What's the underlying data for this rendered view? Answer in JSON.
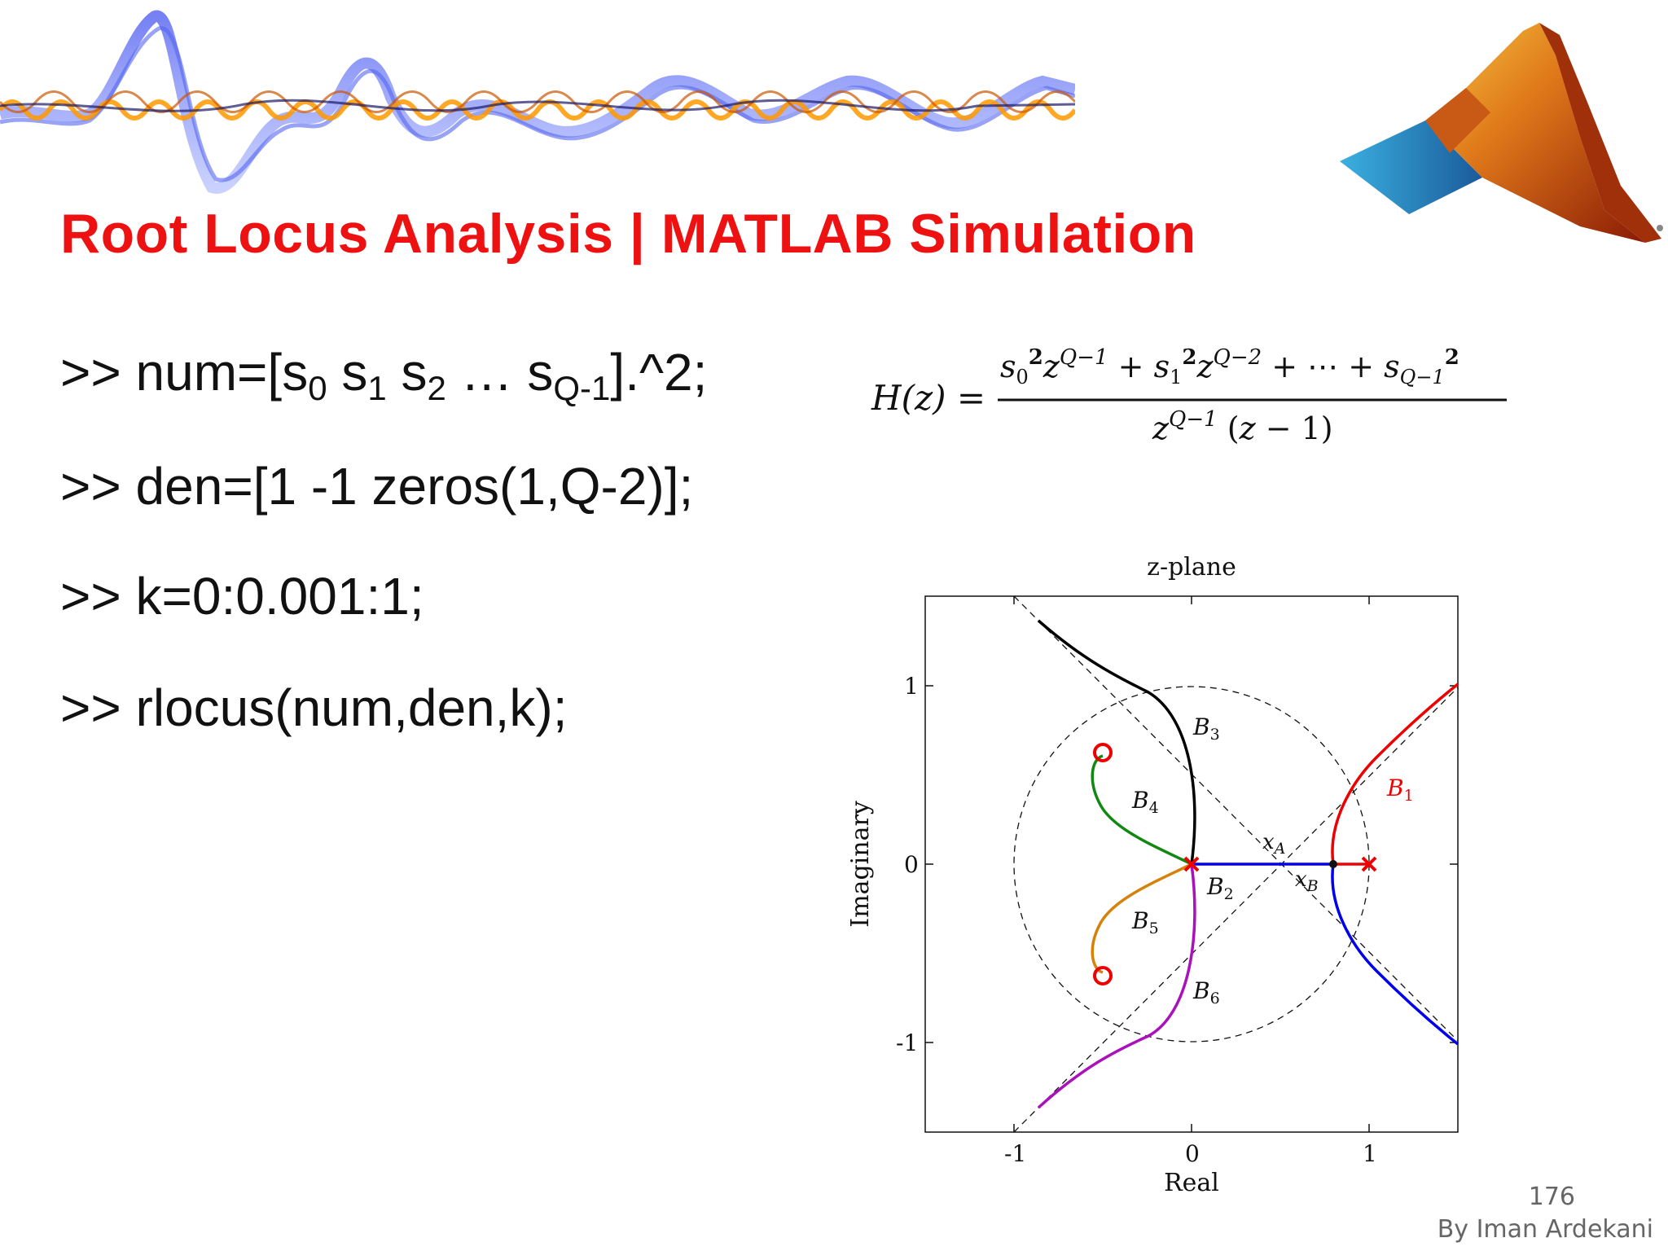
{
  "title": "Root Locus Analysis | MATLAB Simulation",
  "commands": {
    "line1": {
      "prefix": ">> num=[s",
      "s0_sub": "0",
      "s1_base": " s",
      "s1_sub": "1",
      "s2_base": " s",
      "s2_sub": "2",
      "dots": " … s",
      "sq_sub": "Q-1",
      "suffix": "].^2;"
    },
    "line2": ">> den=[1 -1 zeros(1,Q-2)];",
    "line3": ">> k=0:0.001:1;",
    "line4": ">> rlocus(num,den,k);"
  },
  "equation": {
    "lhs": "H(z) =",
    "numerator": "s₀²z^(Q−1) + s₁²z^(Q−2) + ⋯ + s_(Q−1)²",
    "denominator": "z^(Q−1) (z − 1)"
  },
  "diagram": {
    "title": "z-plane",
    "xlabel": "Real",
    "ylabel": "Imaginary",
    "x_ticks": [
      "-1",
      "0",
      "1"
    ],
    "y_ticks": [
      "1",
      "0",
      "-1"
    ],
    "xlim": [
      -1.5,
      1.5
    ],
    "ylim": [
      -1.5,
      1.5
    ],
    "unit_circle": true,
    "branch_labels": {
      "B1": "B",
      "B1_sub": "1",
      "B2": "B",
      "B2_sub": "2",
      "B3": "B",
      "B3_sub": "3",
      "B4": "B",
      "B4_sub": "4",
      "B5": "B",
      "B5_sub": "5",
      "B6": "B",
      "B6_sub": "6"
    },
    "point_labels": {
      "xA": "x",
      "xA_sub": "A",
      "xB": "x",
      "xB_sub": "B"
    },
    "poles": [
      [
        0,
        0
      ],
      [
        1,
        0
      ]
    ],
    "zeros": [
      [
        -0.5,
        0.62
      ],
      [
        -0.5,
        -0.62
      ]
    ],
    "colors": {
      "B1": "#ee0000",
      "B2": "#0000ee",
      "B3": "#000000",
      "B4": "#118811",
      "B5": "#d4820a",
      "B6": "#aa11bb",
      "pole": "#ee0000",
      "zero": "#ee0000"
    }
  },
  "footer": {
    "page_number": "176",
    "author": "By Iman Ardekani"
  }
}
